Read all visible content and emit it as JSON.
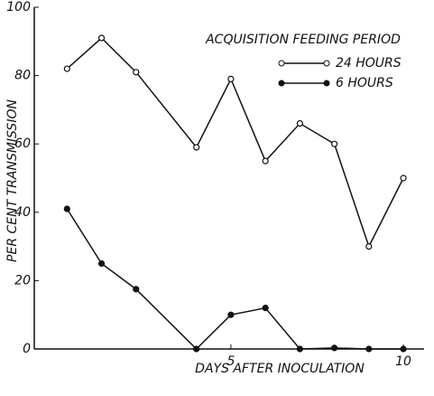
{
  "chart_data": {
    "type": "line",
    "legend_title": "ACQUISITION FEEDING PERIOD",
    "x_label": "DAYS AFTER INOCULATION",
    "y_label": "PER CENT TRANSMISSION",
    "x": [
      0.25,
      1.25,
      2.25,
      4,
      5,
      6,
      7,
      8,
      9,
      10
    ],
    "series": [
      {
        "name": "24 HOURS",
        "color": "#111111",
        "marker": "open",
        "values": [
          82,
          91,
          81,
          59,
          79,
          55,
          66,
          60,
          30,
          50
        ]
      },
      {
        "name": "6 HOURS",
        "color": "#111111",
        "marker": "filled",
        "values": [
          41,
          25,
          17.5,
          0,
          10,
          12,
          0,
          0.3,
          0,
          0
        ]
      }
    ],
    "xlim": [
      -0.7,
      10.6
    ],
    "xticks": [
      5,
      10
    ],
    "ylim": [
      0,
      100
    ],
    "yticks": [
      0,
      20,
      40,
      60,
      80,
      100
    ],
    "legend": "upper right"
  }
}
